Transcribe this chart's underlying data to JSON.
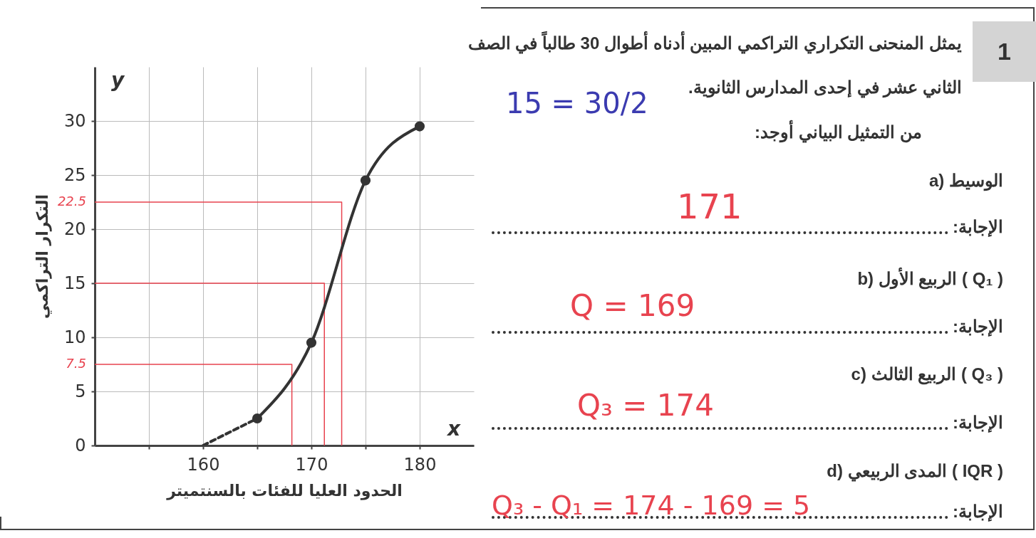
{
  "chart_data": {
    "type": "line",
    "title": "يمثل المنحنى التكراري التراكمي المبين أدناه أطوال 30 طالباً في الصف الثاني عشر في إحدى المدارس الثانوية.",
    "subtitle": "من التمثيل البياني أوجد:",
    "xlabel": "الحدود العليا للفئات بالسنتميتر",
    "ylabel": "التكرار التراكمي",
    "xlim": [
      150,
      185
    ],
    "ylim": [
      0,
      35
    ],
    "xticks": [
      {
        "value": 155,
        "label": null
      },
      160,
      {
        "value": 165,
        "label": null
      },
      170,
      {
        "value": 175,
        "label": null
      },
      180
    ],
    "yticks": [
      0,
      5,
      10,
      15,
      20,
      25,
      30
    ],
    "grid": true,
    "series": [
      {
        "color": "#e8434f",
        "x": [
          150,
          172.8,
          172.8
        ],
        "values": [
          22.5,
          22.5,
          0
        ],
        "line_style": "solid"
      },
      {
        "color": "#e8434f",
        "x": [
          150,
          171.2,
          171.2
        ],
        "values": [
          15,
          15,
          0
        ],
        "line_style": "solid"
      },
      {
        "color": "#e8434f",
        "x": [
          150,
          168.2,
          168.2
        ],
        "values": [
          7.5,
          7.5,
          0
        ],
        "line_style": "solid"
      },
      {
        "color": "#333333",
        "x": [
          160,
          165
        ],
        "values": [
          0,
          2.5
        ],
        "line_style": "dashed"
      },
      {
        "color": "#333333",
        "x": [
          165,
          170,
          175,
          180
        ],
        "values": [
          2.5,
          9.5,
          24.5,
          29.5
        ],
        "marker": "circle",
        "line_style": "solid"
      }
    ],
    "annotations": [
      "1",
      "15 = 30/2",
      "a) الوسيط",
      "الإجابة:",
      "171",
      "b) الربيع الأول ( Q₁ )",
      "الإجابة:",
      "Q = 169",
      "c) الربيع الثالث ( Q₃ )",
      "الإجابة:",
      "Q₃ = 174",
      "d) المدى الربيعي ( IQR )",
      "الإجابة:",
      "Q₃ - Q₁ = 174 - 169 = 5",
      "x",
      "y",
      {
        "text": "22.5",
        "x": 150,
        "y": 22.5
      },
      {
        "text": "7.5",
        "x": 150,
        "y": 7.5
      }
    ]
  }
}
